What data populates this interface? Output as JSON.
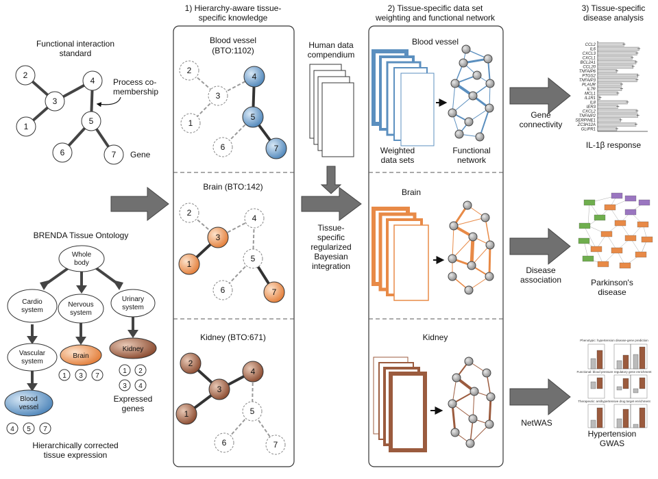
{
  "left": {
    "functional_title_1": "Functional interaction",
    "functional_title_2": "standard",
    "process_label_1": "Process co-",
    "process_label_2": "membership",
    "gene_label": "Gene",
    "nodes": [
      "1",
      "2",
      "3",
      "4",
      "5",
      "6",
      "7"
    ],
    "brenda_title": "BRENDA Tissue Ontology",
    "whole_body_1": "Whole",
    "whole_body_2": "body",
    "cardio_1": "Cardio",
    "cardio_2": "system",
    "nervous_1": "Nervous",
    "nervous_2": "system",
    "urinary_1": "Urinary",
    "urinary_2": "system",
    "vascular_1": "Vascular",
    "vascular_2": "system",
    "brain": "Brain",
    "kidney": "Kidney",
    "blood_vessel_1": "Blood",
    "blood_vessel_2": "vessel",
    "brain_genes": [
      "1",
      "3",
      "7"
    ],
    "kidney_genes": [
      "1",
      "2",
      "3",
      "4"
    ],
    "blood_genes": [
      "4",
      "5",
      "7"
    ],
    "expressed_1": "Expressed",
    "expressed_2": "genes",
    "hier_1": "Hierarchically corrected",
    "hier_2": "tissue expression"
  },
  "panel1": {
    "header_1": "1) Hierarchy-aware tissue-",
    "header_2": "specific knowledge",
    "blood_title": "Blood vessel",
    "blood_code": "(BTO:1102)",
    "brain_title": "Brain (BTO:142)",
    "kidney_title": "Kidney (BTO:671)"
  },
  "middle": {
    "compendium_1": "Human data",
    "compendium_2": "compendium",
    "integration_1": "Tissue-",
    "integration_2": "specific",
    "integration_3": "regularized",
    "integration_4": "Bayesian",
    "integration_5": "integration"
  },
  "panel2": {
    "header_1": "2) Tissue-specific data set",
    "header_2": "weighting and functional network",
    "blood_title": "Blood vessel",
    "weighted_1": "Weighted",
    "weighted_2": "data sets",
    "functional_1": "Functional",
    "functional_2": "network",
    "brain_title": "Brain",
    "kidney_title": "Kidney"
  },
  "arrows": {
    "gene_conn_1": "Gene",
    "gene_conn_2": "connectivity",
    "disease_assoc_1": "Disease",
    "disease_assoc_2": "association",
    "netwas": "NetWAS"
  },
  "panel3": {
    "header_1": "3) Tissue-specific",
    "header_2": "disease analysis",
    "il1b_genes": [
      "CCL2",
      "IL6",
      "CXCL3",
      "CXCL1",
      "BCL2A1",
      "CCL20",
      "TNFAIP6",
      "PTGS2",
      "TNFAIP3",
      "PLAUR",
      "IL7R",
      "MCL1",
      "IL1R1",
      "IL8",
      "IER3",
      "CXCL2",
      "TNFAIP2",
      "SERPINE1",
      "ZC3H12A",
      "GLIPR1"
    ],
    "il1b_values": [
      0.55,
      0.86,
      0.82,
      0.72,
      0.8,
      0.74,
      0.4,
      0.84,
      0.82,
      0.5,
      0.5,
      0.42,
      0.05,
      0.62,
      0.42,
      0.82,
      0.84,
      0.48,
      0.8,
      0.4
    ],
    "il1b_title": "IL-1β response",
    "parkinson_1": "Parkinson's",
    "parkinson_2": "disease",
    "hyp_sub1": "Phenotypic: hypertension disease-gene prediction",
    "hyp_sub2": "Functional: blood pressure regulatory gene enrichment",
    "hyp_sub3": "Therapeutic: antihypertensive drug target enrichment",
    "hypertension_1": "Hypertension",
    "hypertension_2": "GWAS"
  },
  "colors": {
    "blue": "#5b8fbf",
    "orange": "#e88a47",
    "brown": "#9b5b3e",
    "arrow_gray": "#707070"
  }
}
